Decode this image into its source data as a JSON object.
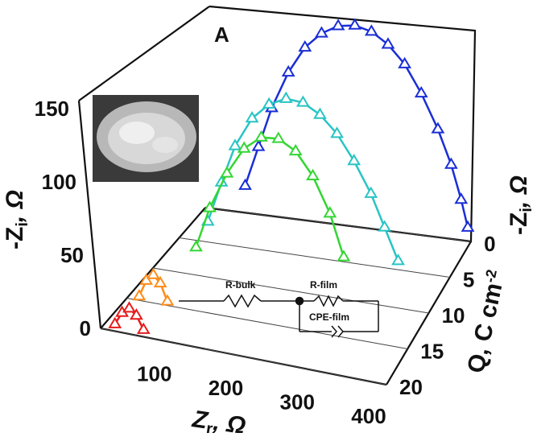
{
  "panel_label": "A",
  "chart_data": {
    "type": "scatter",
    "projection": "3d",
    "x_axis": {
      "label_main": "Z",
      "label_sub": "r",
      "label_unit": ", Ω",
      "ticks": [
        "100",
        "200",
        "300",
        "400"
      ],
      "range": [
        0,
        400
      ]
    },
    "y_axis": {
      "label_main": "-Z",
      "label_sub": "i",
      "label_unit": ", Ω",
      "ticks": [
        "0",
        "50",
        "100",
        "150"
      ],
      "range": [
        0,
        150
      ]
    },
    "z_axis": {
      "label_main": "Q, C cm",
      "label_sup": "-2",
      "ticks": [
        "0",
        "5",
        "10",
        "15",
        "20"
      ],
      "range": [
        0,
        20
      ]
    },
    "back_wall_label": {
      "main": "-Z",
      "sub": "i",
      "unit": ", Ω"
    },
    "series": [
      {
        "color": "#1a2ed6",
        "q": 0,
        "x": [
          60,
          80,
          100,
          125,
          150,
          175,
          200,
          225,
          250,
          275,
          300,
          325,
          350,
          370,
          385,
          395
        ],
        "y": [
          20,
          50,
          80,
          108,
          128,
          140,
          147,
          149,
          146,
          138,
          125,
          105,
          80,
          55,
          30,
          10
        ]
      },
      {
        "color": "#29c4c4",
        "q": 6,
        "x": [
          50,
          70,
          90,
          115,
          140,
          165,
          190,
          215,
          240,
          265,
          290,
          310,
          330
        ],
        "y": [
          20,
          50,
          78,
          100,
          112,
          118,
          117,
          110,
          98,
          80,
          58,
          35,
          12
        ]
      },
      {
        "color": "#33d633",
        "q": 9,
        "x": [
          55,
          75,
          100,
          125,
          150,
          175,
          200,
          225,
          250,
          270
        ],
        "y": [
          15,
          45,
          72,
          92,
          102,
          103,
          96,
          80,
          55,
          25
        ]
      },
      {
        "color": "#ff8c1a",
        "q": 16,
        "x": [
          25,
          35,
          45,
          55,
          65
        ],
        "y": [
          8,
          20,
          25,
          20,
          8
        ]
      },
      {
        "color": "#e81a1a",
        "q": 20,
        "x": [
          20,
          30,
          40,
          50,
          60
        ],
        "y": [
          5,
          14,
          18,
          14,
          5
        ]
      }
    ],
    "inset_circuit": {
      "r_bulk": "R-bulk",
      "r_film": "R-film",
      "cpe_film": "CPE-film"
    },
    "inset_photo": true,
    "grid": false
  }
}
